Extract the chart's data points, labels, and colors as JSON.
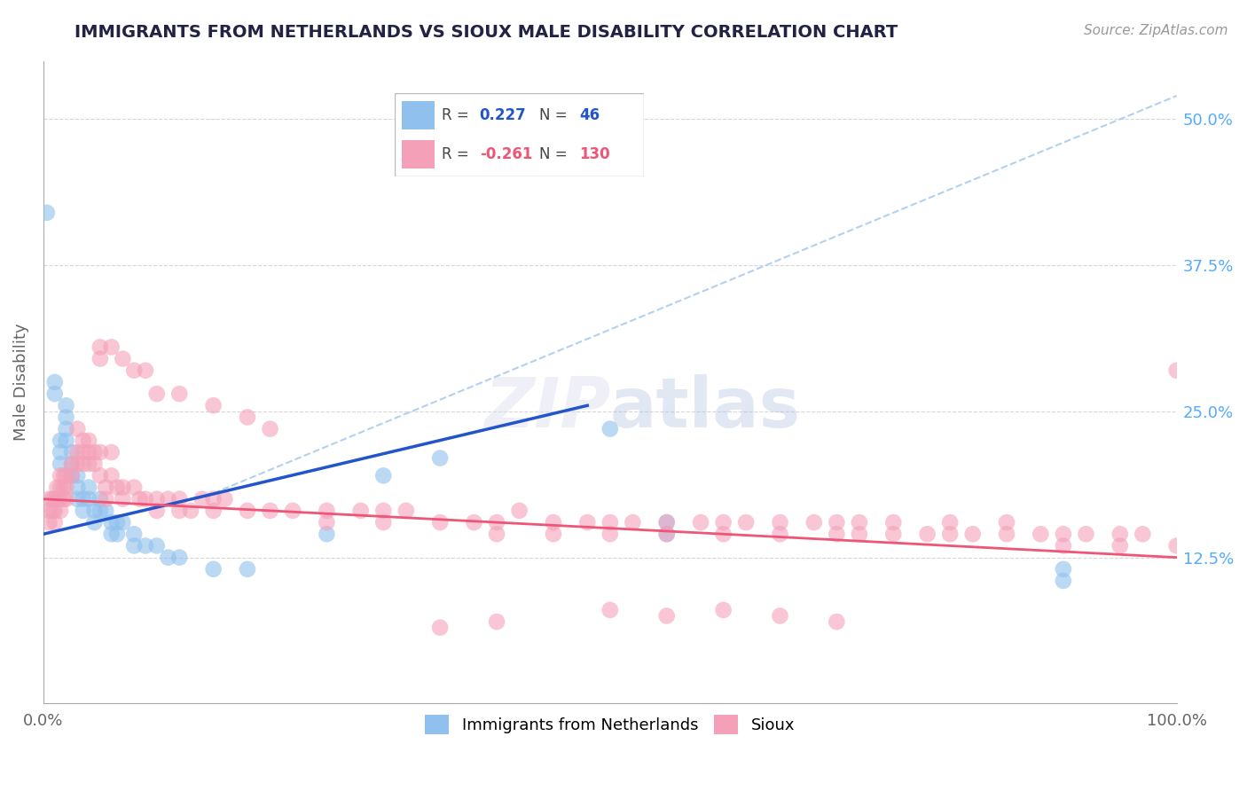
{
  "title": "IMMIGRANTS FROM NETHERLANDS VS SIOUX MALE DISABILITY CORRELATION CHART",
  "source": "Source: ZipAtlas.com",
  "ylabel": "Male Disability",
  "xlim": [
    0.0,
    1.0
  ],
  "ylim": [
    0.0,
    0.55
  ],
  "yticks": [
    0.0,
    0.125,
    0.25,
    0.375,
    0.5
  ],
  "yticklabels": [
    "",
    "12.5%",
    "25.0%",
    "37.5%",
    "50.0%"
  ],
  "xticklabels": [
    "0.0%",
    "100.0%"
  ],
  "color_blue": "#90C0EE",
  "color_pink": "#F4A0B8",
  "line_color_blue": "#2255CC",
  "line_color_pink": "#EE5577",
  "dash_color": "#AACCEE",
  "grid_color": "#CCCCCC",
  "bg_color": "#FFFFFF",
  "fig_bg_color": "#FFFFFF",
  "scatter_blue": [
    [
      0.003,
      0.42
    ],
    [
      0.01,
      0.275
    ],
    [
      0.01,
      0.265
    ],
    [
      0.015,
      0.225
    ],
    [
      0.015,
      0.215
    ],
    [
      0.015,
      0.205
    ],
    [
      0.02,
      0.255
    ],
    [
      0.02,
      0.245
    ],
    [
      0.02,
      0.235
    ],
    [
      0.02,
      0.225
    ],
    [
      0.025,
      0.215
    ],
    [
      0.025,
      0.205
    ],
    [
      0.025,
      0.195
    ],
    [
      0.03,
      0.195
    ],
    [
      0.03,
      0.185
    ],
    [
      0.03,
      0.175
    ],
    [
      0.035,
      0.175
    ],
    [
      0.035,
      0.165
    ],
    [
      0.04,
      0.185
    ],
    [
      0.04,
      0.175
    ],
    [
      0.045,
      0.165
    ],
    [
      0.045,
      0.155
    ],
    [
      0.05,
      0.175
    ],
    [
      0.05,
      0.165
    ],
    [
      0.055,
      0.165
    ],
    [
      0.06,
      0.155
    ],
    [
      0.06,
      0.145
    ],
    [
      0.065,
      0.155
    ],
    [
      0.065,
      0.145
    ],
    [
      0.07,
      0.155
    ],
    [
      0.08,
      0.145
    ],
    [
      0.08,
      0.135
    ],
    [
      0.09,
      0.135
    ],
    [
      0.1,
      0.135
    ],
    [
      0.11,
      0.125
    ],
    [
      0.12,
      0.125
    ],
    [
      0.15,
      0.115
    ],
    [
      0.18,
      0.115
    ],
    [
      0.25,
      0.145
    ],
    [
      0.3,
      0.195
    ],
    [
      0.35,
      0.21
    ],
    [
      0.5,
      0.235
    ],
    [
      0.55,
      0.155
    ],
    [
      0.55,
      0.145
    ],
    [
      0.9,
      0.115
    ],
    [
      0.9,
      0.105
    ]
  ],
  "scatter_pink": [
    [
      0.005,
      0.175
    ],
    [
      0.005,
      0.165
    ],
    [
      0.005,
      0.155
    ],
    [
      0.008,
      0.175
    ],
    [
      0.008,
      0.165
    ],
    [
      0.01,
      0.175
    ],
    [
      0.01,
      0.165
    ],
    [
      0.01,
      0.155
    ],
    [
      0.012,
      0.185
    ],
    [
      0.012,
      0.175
    ],
    [
      0.015,
      0.195
    ],
    [
      0.015,
      0.185
    ],
    [
      0.015,
      0.175
    ],
    [
      0.015,
      0.165
    ],
    [
      0.018,
      0.195
    ],
    [
      0.018,
      0.185
    ],
    [
      0.018,
      0.175
    ],
    [
      0.02,
      0.195
    ],
    [
      0.02,
      0.185
    ],
    [
      0.02,
      0.175
    ],
    [
      0.025,
      0.205
    ],
    [
      0.025,
      0.195
    ],
    [
      0.03,
      0.235
    ],
    [
      0.03,
      0.215
    ],
    [
      0.03,
      0.205
    ],
    [
      0.035,
      0.225
    ],
    [
      0.035,
      0.215
    ],
    [
      0.035,
      0.205
    ],
    [
      0.04,
      0.225
    ],
    [
      0.04,
      0.215
    ],
    [
      0.04,
      0.205
    ],
    [
      0.045,
      0.215
    ],
    [
      0.045,
      0.205
    ],
    [
      0.05,
      0.305
    ],
    [
      0.05,
      0.295
    ],
    [
      0.05,
      0.215
    ],
    [
      0.05,
      0.195
    ],
    [
      0.055,
      0.185
    ],
    [
      0.055,
      0.175
    ],
    [
      0.06,
      0.305
    ],
    [
      0.06,
      0.215
    ],
    [
      0.06,
      0.195
    ],
    [
      0.065,
      0.185
    ],
    [
      0.07,
      0.295
    ],
    [
      0.07,
      0.185
    ],
    [
      0.07,
      0.175
    ],
    [
      0.08,
      0.285
    ],
    [
      0.08,
      0.185
    ],
    [
      0.085,
      0.175
    ],
    [
      0.09,
      0.285
    ],
    [
      0.09,
      0.175
    ],
    [
      0.1,
      0.265
    ],
    [
      0.1,
      0.175
    ],
    [
      0.1,
      0.165
    ],
    [
      0.11,
      0.175
    ],
    [
      0.12,
      0.265
    ],
    [
      0.12,
      0.175
    ],
    [
      0.12,
      0.165
    ],
    [
      0.13,
      0.165
    ],
    [
      0.14,
      0.175
    ],
    [
      0.15,
      0.255
    ],
    [
      0.15,
      0.175
    ],
    [
      0.15,
      0.165
    ],
    [
      0.16,
      0.175
    ],
    [
      0.18,
      0.245
    ],
    [
      0.18,
      0.165
    ],
    [
      0.2,
      0.235
    ],
    [
      0.2,
      0.165
    ],
    [
      0.22,
      0.165
    ],
    [
      0.25,
      0.165
    ],
    [
      0.25,
      0.155
    ],
    [
      0.28,
      0.165
    ],
    [
      0.3,
      0.165
    ],
    [
      0.3,
      0.155
    ],
    [
      0.32,
      0.165
    ],
    [
      0.35,
      0.155
    ],
    [
      0.38,
      0.155
    ],
    [
      0.4,
      0.155
    ],
    [
      0.4,
      0.145
    ],
    [
      0.42,
      0.165
    ],
    [
      0.45,
      0.155
    ],
    [
      0.45,
      0.145
    ],
    [
      0.48,
      0.155
    ],
    [
      0.5,
      0.155
    ],
    [
      0.5,
      0.145
    ],
    [
      0.52,
      0.155
    ],
    [
      0.55,
      0.155
    ],
    [
      0.55,
      0.145
    ],
    [
      0.58,
      0.155
    ],
    [
      0.6,
      0.155
    ],
    [
      0.6,
      0.145
    ],
    [
      0.62,
      0.155
    ],
    [
      0.65,
      0.155
    ],
    [
      0.65,
      0.145
    ],
    [
      0.68,
      0.155
    ],
    [
      0.7,
      0.155
    ],
    [
      0.7,
      0.145
    ],
    [
      0.72,
      0.155
    ],
    [
      0.72,
      0.145
    ],
    [
      0.75,
      0.155
    ],
    [
      0.75,
      0.145
    ],
    [
      0.78,
      0.145
    ],
    [
      0.8,
      0.155
    ],
    [
      0.8,
      0.145
    ],
    [
      0.82,
      0.145
    ],
    [
      0.85,
      0.155
    ],
    [
      0.85,
      0.145
    ],
    [
      0.88,
      0.145
    ],
    [
      0.9,
      0.145
    ],
    [
      0.9,
      0.135
    ],
    [
      0.92,
      0.145
    ],
    [
      0.95,
      0.145
    ],
    [
      0.95,
      0.135
    ],
    [
      0.97,
      0.145
    ],
    [
      1.0,
      0.135
    ],
    [
      0.5,
      0.08
    ],
    [
      0.55,
      0.075
    ],
    [
      0.6,
      0.08
    ],
    [
      0.65,
      0.075
    ],
    [
      0.7,
      0.07
    ],
    [
      0.35,
      0.065
    ],
    [
      0.4,
      0.07
    ],
    [
      1.0,
      0.285
    ]
  ],
  "blue_line": [
    [
      0.0,
      0.145
    ],
    [
      0.48,
      0.255
    ]
  ],
  "pink_line": [
    [
      0.0,
      0.175
    ],
    [
      1.0,
      0.125
    ]
  ],
  "dash_line": [
    [
      0.15,
      0.18
    ],
    [
      1.0,
      0.52
    ]
  ]
}
